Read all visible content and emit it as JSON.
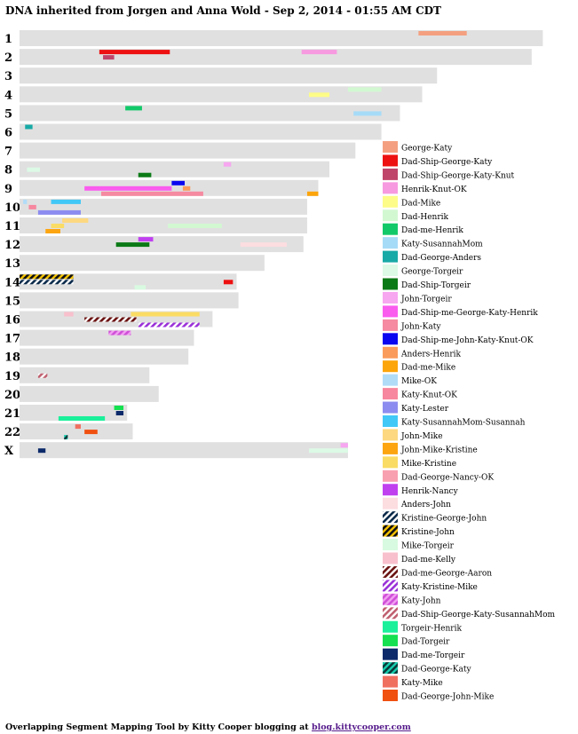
{
  "title": "DNA inherited from Jorgen and Anna Wold - Sep 2, 2014 - 01:55 AM CDT",
  "footer": {
    "text": "Overlapping Segment Mapping Tool by Kitty Cooper blogging at",
    "link_text": "blog.kittycooper.com"
  },
  "chart_data": {
    "type": "chromosome-map",
    "x_unit": "cM",
    "chromosomes": [
      {
        "label": "1",
        "length": 282
      },
      {
        "label": "2",
        "length": 276
      },
      {
        "label": "3",
        "length": 225
      },
      {
        "label": "4",
        "length": 217
      },
      {
        "label": "5",
        "length": 205
      },
      {
        "label": "6",
        "length": 195
      },
      {
        "label": "7",
        "length": 181
      },
      {
        "label": "8",
        "length": 167
      },
      {
        "label": "9",
        "length": 161
      },
      {
        "label": "10",
        "length": 155
      },
      {
        "label": "11",
        "length": 155
      },
      {
        "label": "12",
        "length": 153
      },
      {
        "label": "13",
        "length": 132
      },
      {
        "label": "14",
        "length": 117
      },
      {
        "label": "15",
        "length": 118
      },
      {
        "label": "16",
        "length": 104
      },
      {
        "label": "17",
        "length": 94
      },
      {
        "label": "18",
        "length": 91
      },
      {
        "label": "19",
        "length": 70
      },
      {
        "label": "20",
        "length": 75
      },
      {
        "label": "21",
        "length": 58
      },
      {
        "label": "22",
        "length": 61
      },
      {
        "label": "X",
        "length": 177
      }
    ],
    "legend": [
      {
        "name": "George-Katy",
        "color": "#f4a080",
        "pattern": "solid"
      },
      {
        "name": "Dad-Ship-George-Katy",
        "color": "#ee1111",
        "pattern": "solid"
      },
      {
        "name": "Dad-Ship-George-Katy-Knut",
        "color": "#c0456a",
        "pattern": "solid"
      },
      {
        "name": "Henrik-Knut-OK",
        "color": "#f79ae0",
        "pattern": "solid"
      },
      {
        "name": "Dad-Mike",
        "color": "#fdfc88",
        "pattern": "solid"
      },
      {
        "name": "Dad-Henrik",
        "color": "#d2f8d2",
        "pattern": "solid"
      },
      {
        "name": "Dad-me-Henrik",
        "color": "#12c96a",
        "pattern": "solid"
      },
      {
        "name": "Katy-SusannahMom",
        "color": "#a6dbf7",
        "pattern": "solid"
      },
      {
        "name": "Dad-George-Anders",
        "color": "#18aaa6",
        "pattern": "solid"
      },
      {
        "name": "George-Torgeir",
        "color": "#dcfae6",
        "pattern": "solid"
      },
      {
        "name": "Dad-Ship-Torgeir",
        "color": "#0b7a16",
        "pattern": "solid"
      },
      {
        "name": "John-Torgeir",
        "color": "#f7a6f0",
        "pattern": "solid"
      },
      {
        "name": "Dad-Ship-me-George-Katy-Henrik",
        "color": "#fa5cee",
        "pattern": "solid"
      },
      {
        "name": "John-Katy",
        "color": "#f58aa0",
        "pattern": "solid"
      },
      {
        "name": "Dad-Ship-me-John-Katy-Knut-OK",
        "color": "#0a06f0",
        "pattern": "solid"
      },
      {
        "name": "Anders-Henrik",
        "color": "#fa9b5c",
        "pattern": "solid"
      },
      {
        "name": "Dad-me-Mike",
        "color": "#fca50a",
        "pattern": "solid"
      },
      {
        "name": "Mike-OK",
        "color": "#b0dcf8",
        "pattern": "solid"
      },
      {
        "name": "Katy-Knut-OK",
        "color": "#f7879e",
        "pattern": "solid"
      },
      {
        "name": "Katy-Lester",
        "color": "#8c8cf0",
        "pattern": "solid"
      },
      {
        "name": "Katy-SusannahMom-Susannah",
        "color": "#42c8f7",
        "pattern": "solid"
      },
      {
        "name": "John-Mike",
        "color": "#fdd880",
        "pattern": "solid"
      },
      {
        "name": "John-Mike-Kristine",
        "color": "#fca510",
        "pattern": "solid"
      },
      {
        "name": "Mike-Kristine",
        "color": "#fadc64",
        "pattern": "solid"
      },
      {
        "name": "Dad-George-Nancy-OK",
        "color": "#f9a0b0",
        "pattern": "solid"
      },
      {
        "name": "Henrik-Nancy",
        "color": "#c040f0",
        "pattern": "solid"
      },
      {
        "name": "Anders-John",
        "color": "#fcdde0",
        "pattern": "solid"
      },
      {
        "name": "Kristine-George-John",
        "color": "#0a2a4a",
        "pattern": "stripe",
        "stripe": "#ffffff"
      },
      {
        "name": "Kristine-John",
        "color": "#101010",
        "pattern": "stripe",
        "stripe": "#f6c400"
      },
      {
        "name": "Mike-Torgeir",
        "color": "#d8fae0",
        "pattern": "solid"
      },
      {
        "name": "Dad-me-Kelly",
        "color": "#f8c0cc",
        "pattern": "solid"
      },
      {
        "name": "Dad-me-George-Aaron",
        "color": "#6a1010",
        "pattern": "stripe",
        "stripe": "#ffffff"
      },
      {
        "name": "Katy-Kristine-Mike",
        "color": "#9a30d8",
        "pattern": "stripe",
        "stripe": "#ffffff"
      },
      {
        "name": "Katy-John",
        "color": "#d050d8",
        "pattern": "stripe",
        "stripe": "#f2a0f2"
      },
      {
        "name": "Dad-Ship-George-Katy-SusannahMom",
        "color": "#c06070",
        "pattern": "stripe",
        "stripe": "#ffffff"
      },
      {
        "name": "Torgeir-Henrik",
        "color": "#1af09a",
        "pattern": "solid"
      },
      {
        "name": "Dad-Torgeir",
        "color": "#14e050",
        "pattern": "solid"
      },
      {
        "name": "Dad-me-Torgeir",
        "color": "#0c2a6a",
        "pattern": "solid"
      },
      {
        "name": "Dad-George-Katy",
        "color": "#0a3a3a",
        "pattern": "stripe",
        "stripe": "#18d0b0"
      },
      {
        "name": "Katy-Mike",
        "color": "#f07060",
        "pattern": "solid"
      },
      {
        "name": "Dad-George-John-Mike",
        "color": "#f05010",
        "pattern": "solid"
      }
    ],
    "segments": [
      {
        "chr": "1",
        "start": 215,
        "end": 241,
        "group": "George-Katy",
        "row": 0
      },
      {
        "chr": "2",
        "start": 43,
        "end": 81,
        "group": "Dad-Ship-George-Katy",
        "row": 0
      },
      {
        "chr": "2",
        "start": 45,
        "end": 51,
        "group": "Dad-Ship-George-Katy-Knut",
        "row": 1
      },
      {
        "chr": "2",
        "start": 152,
        "end": 171,
        "group": "Henrik-Knut-OK",
        "row": 0
      },
      {
        "chr": "4",
        "start": 177,
        "end": 195,
        "group": "Dad-Henrik",
        "row": 0
      },
      {
        "chr": "4",
        "start": 156,
        "end": 167,
        "group": "Dad-Mike",
        "row": 1
      },
      {
        "chr": "5",
        "start": 57,
        "end": 66,
        "group": "Dad-me-Henrik",
        "row": 0
      },
      {
        "chr": "5",
        "start": 180,
        "end": 195,
        "group": "Katy-SusannahMom",
        "row": 1
      },
      {
        "chr": "6",
        "start": 3,
        "end": 7,
        "group": "Dad-George-Anders",
        "row": 0
      },
      {
        "chr": "8",
        "start": 110,
        "end": 114,
        "group": "John-Torgeir",
        "row": 0
      },
      {
        "chr": "8",
        "start": 4,
        "end": 11,
        "group": "George-Torgeir",
        "row": 1
      },
      {
        "chr": "8",
        "start": 64,
        "end": 71,
        "group": "Dad-Ship-Torgeir",
        "row": 2
      },
      {
        "chr": "9",
        "start": 82,
        "end": 89,
        "group": "Dad-Ship-me-John-Katy-Knut-OK",
        "row": 0
      },
      {
        "chr": "9",
        "start": 35,
        "end": 82,
        "group": "Dad-Ship-me-George-Katy-Henrik",
        "row": 1
      },
      {
        "chr": "9",
        "start": 88,
        "end": 92,
        "group": "Anders-Henrik",
        "row": 1
      },
      {
        "chr": "9",
        "start": 44,
        "end": 99,
        "group": "John-Katy",
        "row": 2
      },
      {
        "chr": "9",
        "start": 155,
        "end": 161,
        "group": "Dad-me-Mike",
        "row": 2
      },
      {
        "chr": "10",
        "start": 17,
        "end": 33,
        "group": "Katy-SusannahMom-Susannah",
        "row": 0
      },
      {
        "chr": "10",
        "start": 2,
        "end": 4,
        "group": "Mike-OK",
        "row": 0
      },
      {
        "chr": "10",
        "start": 5,
        "end": 9,
        "group": "Katy-Knut-OK",
        "row": 1
      },
      {
        "chr": "10",
        "start": 10,
        "end": 33,
        "group": "Katy-Lester",
        "row": 2
      },
      {
        "chr": "11",
        "start": 23,
        "end": 37,
        "group": "John-Mike",
        "row": 0
      },
      {
        "chr": "11",
        "start": 80,
        "end": 109,
        "group": "Dad-Henrik",
        "row": 1
      },
      {
        "chr": "11",
        "start": 17,
        "end": 24,
        "group": "Mike-Kristine",
        "row": 1
      },
      {
        "chr": "11",
        "start": 14,
        "end": 22,
        "group": "John-Mike-Kristine",
        "row": 2
      },
      {
        "chr": "12",
        "start": 64,
        "end": 72,
        "group": "Henrik-Nancy",
        "row": 0
      },
      {
        "chr": "12",
        "start": 52,
        "end": 70,
        "group": "Dad-Ship-Torgeir",
        "row": 1
      },
      {
        "chr": "12",
        "start": 119,
        "end": 144,
        "group": "Anders-John",
        "row": 1
      },
      {
        "chr": "14",
        "start": 0,
        "end": 29,
        "group": "Kristine-John",
        "row": 0
      },
      {
        "chr": "14",
        "start": 0,
        "end": 29,
        "group": "Kristine-George-John",
        "row": 1
      },
      {
        "chr": "14",
        "start": 110,
        "end": 115,
        "group": "Dad-Ship-George-Katy",
        "row": 1
      },
      {
        "chr": "14",
        "start": 62,
        "end": 68,
        "group": "Mike-Torgeir",
        "row": 2
      },
      {
        "chr": "16",
        "start": 24,
        "end": 29,
        "group": "Dad-me-Kelly",
        "row": 0
      },
      {
        "chr": "16",
        "start": 60,
        "end": 97,
        "group": "Mike-Kristine",
        "row": 0
      },
      {
        "chr": "16",
        "start": 35,
        "end": 63,
        "group": "Dad-me-George-Aaron",
        "row": 1
      },
      {
        "chr": "16",
        "start": 64,
        "end": 97,
        "group": "Katy-Kristine-Mike",
        "row": 2
      },
      {
        "chr": "17",
        "start": 48,
        "end": 60,
        "group": "Katy-John",
        "row": 0
      },
      {
        "chr": "19",
        "start": 10,
        "end": 15,
        "group": "Dad-Ship-George-Katy-SusannahMom",
        "row": 1
      },
      {
        "chr": "21",
        "start": 51,
        "end": 56,
        "group": "Dad-Torgeir",
        "row": 0
      },
      {
        "chr": "21",
        "start": 52,
        "end": 56,
        "group": "Dad-me-Torgeir",
        "row": 1
      },
      {
        "chr": "21",
        "start": 21,
        "end": 46,
        "group": "Torgeir-Henrik",
        "row": 2
      },
      {
        "chr": "22",
        "start": 30,
        "end": 33,
        "group": "Katy-Mike",
        "row": 0
      },
      {
        "chr": "22",
        "start": 35,
        "end": 42,
        "group": "Dad-George-John-Mike",
        "row": 1
      },
      {
        "chr": "22",
        "start": 24,
        "end": 26,
        "group": "Dad-George-Katy",
        "row": 2
      },
      {
        "chr": "X",
        "start": 173,
        "end": 177,
        "group": "John-Torgeir",
        "row": 0
      },
      {
        "chr": "X",
        "start": 156,
        "end": 177,
        "group": "George-Torgeir",
        "row": 1
      },
      {
        "chr": "X",
        "start": 10,
        "end": 14,
        "group": "Dad-me-Torgeir",
        "row": 1
      }
    ]
  }
}
